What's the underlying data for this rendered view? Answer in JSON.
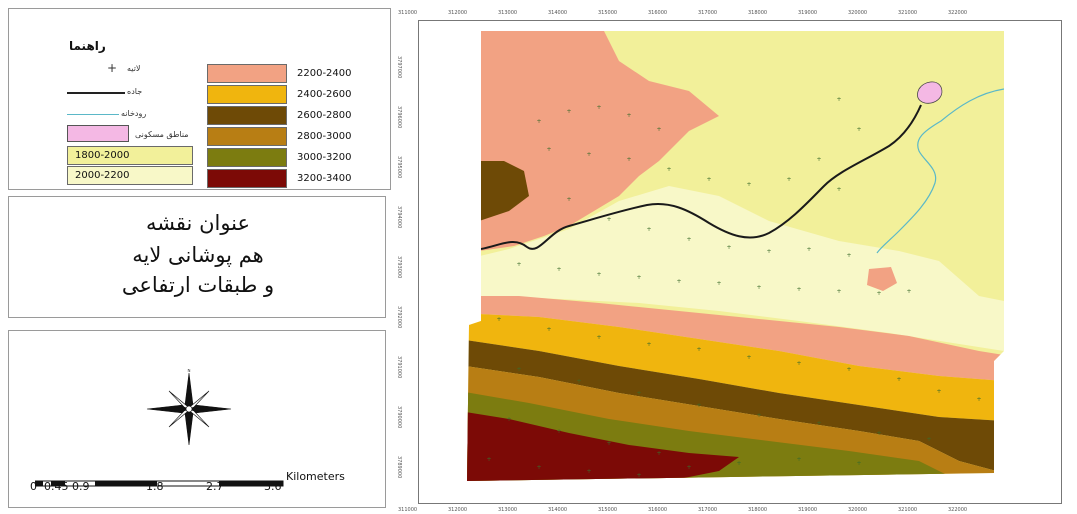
{
  "legend": {
    "title": "راهنما",
    "classes": [
      {
        "label": "2200-2400",
        "color": "#f2a283"
      },
      {
        "label": "2400-2600",
        "color": "#f0b50e"
      },
      {
        "label": "2600-2800",
        "color": "#6e4a06"
      },
      {
        "label": "2800-3000",
        "color": "#b87e14"
      },
      {
        "label": "3000-3200",
        "color": "#7c7c10"
      },
      {
        "label": "3200-3400",
        "color": "#7c0a06"
      },
      {
        "label": "1800-2000",
        "color": "#f2f09a"
      },
      {
        "label": "2000-2200",
        "color": "#f8f8c8"
      }
    ],
    "symbols": [
      {
        "label": "لاتیه",
        "icon": "point-marker-icon"
      },
      {
        "label": "جاده",
        "icon": "road-line-icon"
      },
      {
        "label": "رودخانه",
        "icon": "river-line-icon"
      },
      {
        "label": "مناطق مسکونی",
        "icon": "settlement-polygon-icon"
      }
    ]
  },
  "map_title": {
    "lines": [
      "عنوان نقشه",
      "هم پوشانی لایه",
      "و طبقات ارتفاعی"
    ]
  },
  "scale_bar": {
    "labels": [
      "0",
      "0.45",
      "0.9",
      "1.8",
      "2.7",
      "3.6"
    ],
    "unit": "Kilometers"
  },
  "colors": {
    "c1800": "#f2f09a",
    "c2000": "#f8f8c8",
    "c2200": "#f2a283",
    "c2400": "#f0b50e",
    "c2600": "#6e4a06",
    "c2800": "#b87e14",
    "c3000": "#7c7c10",
    "c3200": "#7c0a06",
    "road": "#1a1a1a",
    "river": "#5bb8c8",
    "settlement": "#f4b8e4",
    "points": "#3a6b2a"
  },
  "graticule": {
    "top": [
      "311000",
      "312000",
      "313000",
      "314000",
      "315000",
      "316000",
      "317000",
      "318000",
      "319000",
      "320000",
      "321000",
      "322000"
    ],
    "left": [
      "3797000",
      "3796000",
      "3795000",
      "3794000",
      "3793000",
      "3792000",
      "3791000",
      "3790000",
      "3789000"
    ]
  }
}
